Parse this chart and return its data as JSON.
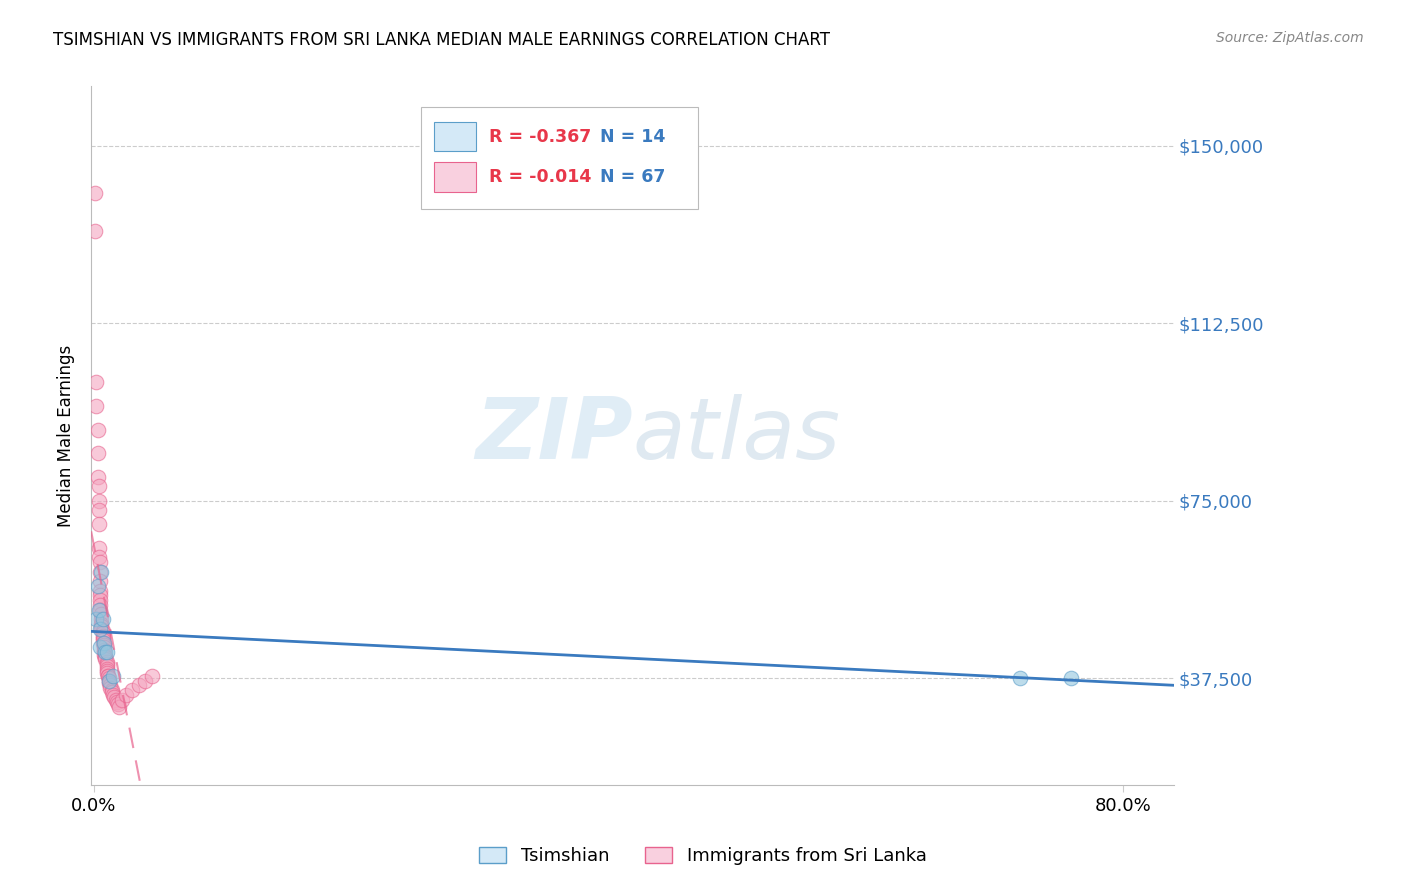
{
  "title": "TSIMSHIAN VS IMMIGRANTS FROM SRI LANKA MEDIAN MALE EARNINGS CORRELATION CHART",
  "source": "Source: ZipAtlas.com",
  "ylabel": "Median Male Earnings",
  "ytick_labels": [
    "$37,500",
    "$75,000",
    "$112,500",
    "$150,000"
  ],
  "ytick_values": [
    37500,
    75000,
    112500,
    150000
  ],
  "ymin": 15000,
  "ymax": 162500,
  "xmin": -0.002,
  "xmax": 0.84,
  "watermark_zip": "ZIP",
  "watermark_atlas": "atlas",
  "blue_color": "#92c5de",
  "pink_color": "#f4a6c0",
  "blue_edge_color": "#5b9ec9",
  "pink_edge_color": "#e8638e",
  "blue_line_color": "#3a7abf",
  "pink_line_color": "#e8638e",
  "tsimshian_x": [
    0.002,
    0.003,
    0.004,
    0.005,
    0.005,
    0.006,
    0.007,
    0.008,
    0.009,
    0.01,
    0.012,
    0.015,
    0.72,
    0.76
  ],
  "tsimshian_y": [
    50000,
    57000,
    52000,
    48000,
    44000,
    60000,
    50000,
    45000,
    43000,
    43000,
    37000,
    38000,
    37500,
    37500
  ],
  "srilanka_x": [
    0.001,
    0.001,
    0.002,
    0.002,
    0.003,
    0.003,
    0.003,
    0.004,
    0.004,
    0.004,
    0.004,
    0.004,
    0.004,
    0.005,
    0.005,
    0.005,
    0.005,
    0.005,
    0.005,
    0.005,
    0.005,
    0.006,
    0.006,
    0.006,
    0.006,
    0.006,
    0.007,
    0.007,
    0.007,
    0.007,
    0.007,
    0.007,
    0.008,
    0.008,
    0.008,
    0.008,
    0.008,
    0.009,
    0.009,
    0.009,
    0.01,
    0.01,
    0.01,
    0.01,
    0.01,
    0.01,
    0.011,
    0.011,
    0.012,
    0.012,
    0.012,
    0.013,
    0.013,
    0.014,
    0.014,
    0.015,
    0.016,
    0.017,
    0.018,
    0.019,
    0.02,
    0.022,
    0.025,
    0.03,
    0.035,
    0.04,
    0.045
  ],
  "srilanka_y": [
    140000,
    132000,
    100000,
    95000,
    90000,
    85000,
    80000,
    78000,
    75000,
    73000,
    70000,
    65000,
    63000,
    62000,
    60000,
    58000,
    56000,
    55000,
    54000,
    53000,
    52000,
    51000,
    50000,
    49000,
    48500,
    48000,
    47500,
    47000,
    46500,
    46000,
    45500,
    45000,
    44500,
    44000,
    43500,
    43000,
    42500,
    42000,
    42000,
    41500,
    41000,
    40500,
    40000,
    39500,
    39000,
    38500,
    38000,
    38000,
    37500,
    37000,
    36500,
    36000,
    35500,
    35000,
    34500,
    34000,
    33500,
    33000,
    32500,
    32000,
    31500,
    33000,
    34000,
    35000,
    36000,
    37000,
    38000
  ],
  "legend_r_blue": "R = -0.367",
  "legend_n_blue": "N = 14",
  "legend_r_pink": "R = -0.014",
  "legend_n_pink": "N = 67",
  "r_color": "#e8374a",
  "n_color": "#3a7abf",
  "label_tsimshian": "Tsimshian",
  "label_srilanka": "Immigrants from Sri Lanka"
}
